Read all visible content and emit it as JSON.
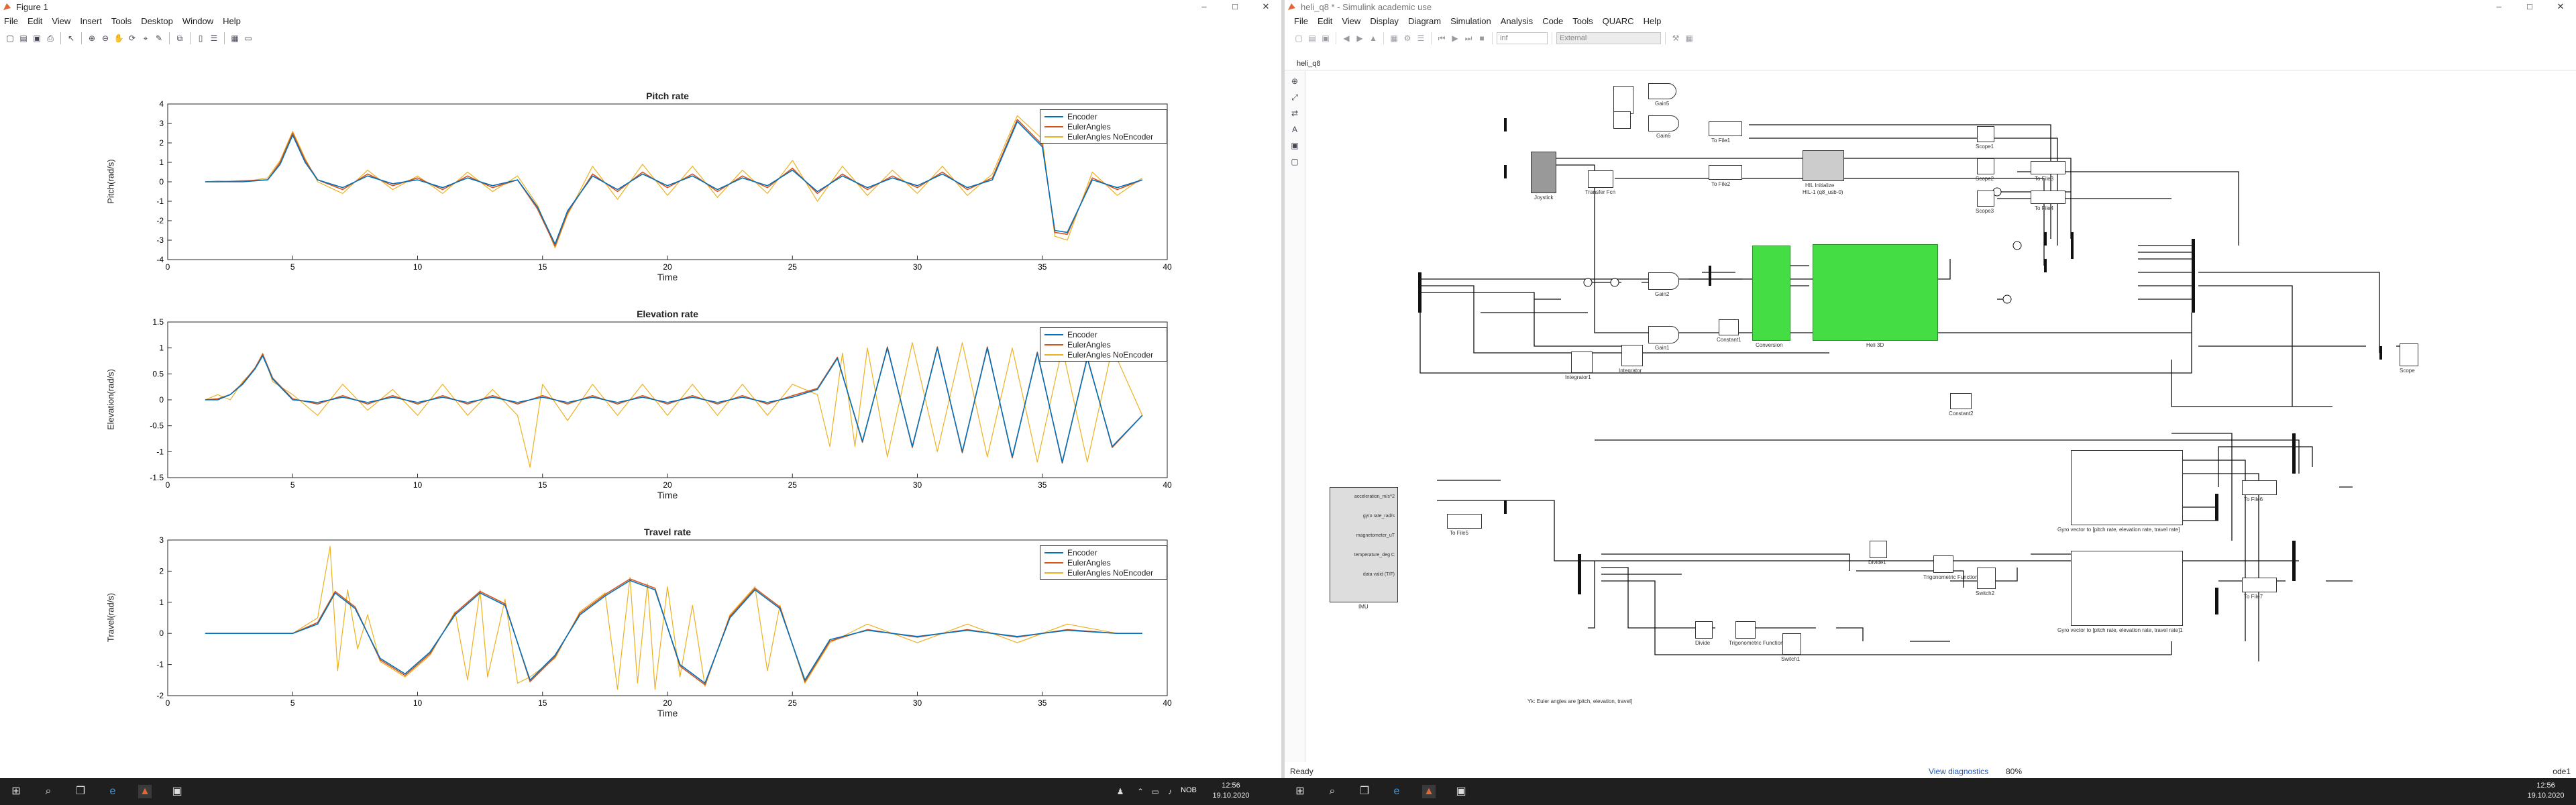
{
  "figure_window": {
    "title": "Figure 1",
    "menu": [
      "File",
      "Edit",
      "View",
      "Insert",
      "Tools",
      "Desktop",
      "Window",
      "Help"
    ],
    "controls": [
      "–",
      "□",
      "✕"
    ],
    "legend_entries": [
      "Encoder",
      "EulerAngles",
      "EulerAngles NoEncoder"
    ],
    "xlabel": "Time"
  },
  "chart_data": [
    {
      "type": "line",
      "title": "Pitch rate",
      "xlabel": "Time",
      "ylabel": "Pitch(rad/s)",
      "xlim": [
        0,
        40
      ],
      "ylim": [
        -4,
        4
      ],
      "xticks": [
        0,
        5,
        10,
        15,
        20,
        25,
        30,
        35,
        40
      ],
      "yticks": [
        -4,
        -3,
        -2,
        -1,
        0,
        1,
        2,
        3,
        4
      ],
      "legend_position": "top-right",
      "series": [
        {
          "name": "Encoder",
          "color": "#0072bd",
          "x": [
            1.5,
            2,
            3,
            4,
            4.5,
            5,
            5.5,
            6,
            7,
            8,
            9,
            10,
            11,
            12,
            13,
            14,
            14.8,
            15.5,
            16,
            17,
            18,
            19,
            20,
            21,
            22,
            23,
            24,
            25,
            26,
            27,
            28,
            29,
            30,
            31,
            32,
            33,
            34,
            35,
            35.5,
            36,
            37,
            38,
            39
          ],
          "y": [
            0,
            0,
            0,
            0.1,
            0.9,
            2.4,
            1,
            0.1,
            -0.3,
            0.3,
            -0.1,
            0.1,
            -0.3,
            0.2,
            -0.2,
            0.1,
            -1.3,
            -3.2,
            -1.5,
            0.3,
            -0.4,
            0.4,
            -0.2,
            0.3,
            -0.4,
            0.2,
            -0.2,
            0.6,
            -0.5,
            0.3,
            -0.3,
            0.2,
            -0.2,
            0.4,
            -0.3,
            0.1,
            3.1,
            1.8,
            -2.5,
            -2.6,
            0.1,
            -0.3,
            0.1
          ]
        },
        {
          "name": "EulerAngles",
          "color": "#d95319",
          "x": [
            1.5,
            2,
            3,
            4,
            4.5,
            5,
            5.5,
            6,
            7,
            8,
            9,
            10,
            11,
            12,
            13,
            14,
            14.8,
            15.5,
            16,
            17,
            18,
            19,
            20,
            21,
            22,
            23,
            24,
            25,
            26,
            27,
            28,
            29,
            30,
            31,
            32,
            33,
            34,
            35,
            35.5,
            36,
            37,
            38,
            39
          ],
          "y": [
            0,
            0,
            0.05,
            0.1,
            1,
            2.5,
            1.1,
            0.1,
            -0.4,
            0.4,
            -0.2,
            0.2,
            -0.4,
            0.3,
            -0.3,
            0.1,
            -1.4,
            -3.3,
            -1.6,
            0.4,
            -0.5,
            0.5,
            -0.3,
            0.4,
            -0.5,
            0.3,
            -0.3,
            0.7,
            -0.6,
            0.4,
            -0.4,
            0.3,
            -0.3,
            0.5,
            -0.4,
            0.2,
            3.2,
            1.9,
            -2.6,
            -2.7,
            0.2,
            -0.4,
            0.1
          ]
        },
        {
          "name": "EulerAngles NoEncoder",
          "color": "#edb120",
          "x": [
            1.5,
            2,
            3,
            4,
            4.5,
            5,
            5.5,
            6,
            7,
            8,
            9,
            10,
            11,
            12,
            13,
            14,
            14.8,
            15.5,
            16,
            17,
            18,
            19,
            20,
            21,
            22,
            23,
            24,
            25,
            26,
            27,
            28,
            29,
            30,
            31,
            32,
            33,
            34,
            35,
            35.5,
            36,
            37,
            38,
            39
          ],
          "y": [
            0,
            0.05,
            0,
            0.2,
            1.1,
            2.6,
            1.2,
            0,
            -0.6,
            0.6,
            -0.4,
            0.3,
            -0.6,
            0.5,
            -0.5,
            0.3,
            -1.2,
            -3.4,
            -1.7,
            0.8,
            -0.9,
            0.9,
            -0.7,
            0.8,
            -0.8,
            0.6,
            -0.6,
            1.1,
            -1.0,
            0.8,
            -0.7,
            0.6,
            -0.6,
            0.8,
            -0.7,
            0.4,
            3.4,
            2.2,
            -2.8,
            -3.0,
            0.5,
            -0.7,
            0.2
          ]
        }
      ]
    },
    {
      "type": "line",
      "title": "Elevation rate",
      "xlabel": "Time",
      "ylabel": "Elevation(rad/s)",
      "xlim": [
        0,
        40
      ],
      "ylim": [
        -1.5,
        1.5
      ],
      "xticks": [
        0,
        5,
        10,
        15,
        20,
        25,
        30,
        35,
        40
      ],
      "yticks": [
        -1.5,
        -1,
        -0.5,
        0,
        0.5,
        1,
        1.5
      ],
      "legend_position": "top-right",
      "series": [
        {
          "name": "Encoder",
          "color": "#0072bd",
          "x": [
            1.5,
            2,
            2.5,
            3,
            3.5,
            3.8,
            4.2,
            5,
            6,
            7,
            8,
            9,
            10,
            11,
            12,
            13,
            14,
            15,
            16,
            17,
            18,
            19,
            20,
            21,
            22,
            23,
            24,
            25,
            26,
            26.8,
            27.8,
            28.8,
            29.8,
            30.8,
            31.8,
            32.8,
            33.8,
            34.8,
            35.8,
            36.8,
            37.8,
            39
          ],
          "y": [
            0,
            0,
            0.1,
            0.3,
            0.6,
            0.85,
            0.4,
            0,
            -0.05,
            0.05,
            -0.05,
            0.05,
            -0.05,
            0.05,
            -0.05,
            0.05,
            -0.05,
            0.05,
            -0.05,
            0.05,
            -0.05,
            0.05,
            -0.05,
            0.05,
            -0.05,
            0.05,
            -0.05,
            0.05,
            0.2,
            0.8,
            -0.8,
            1.0,
            -0.9,
            1.0,
            -1.0,
            1.0,
            -1.1,
            0.9,
            -1.2,
            0.8,
            -0.9,
            -0.3
          ]
        },
        {
          "name": "EulerAngles",
          "color": "#d95319",
          "x": [
            1.5,
            2,
            2.5,
            3,
            3.5,
            3.8,
            4.2,
            5,
            6,
            7,
            8,
            9,
            10,
            11,
            12,
            13,
            14,
            15,
            16,
            17,
            18,
            19,
            20,
            21,
            22,
            23,
            24,
            25,
            26,
            26.8,
            27.8,
            28.8,
            29.8,
            30.8,
            31.8,
            32.8,
            33.8,
            34.8,
            35.8,
            36.8,
            37.8,
            39
          ],
          "y": [
            0,
            0.02,
            0.1,
            0.32,
            0.62,
            0.88,
            0.42,
            0.02,
            -0.08,
            0.08,
            -0.08,
            0.08,
            -0.08,
            0.08,
            -0.08,
            0.08,
            -0.08,
            0.08,
            -0.08,
            0.08,
            -0.08,
            0.08,
            -0.08,
            0.08,
            -0.08,
            0.08,
            -0.08,
            0.08,
            0.22,
            0.82,
            -0.82,
            1.02,
            -0.92,
            1.02,
            -1.02,
            1.02,
            -1.12,
            0.92,
            -1.22,
            0.82,
            -0.92,
            -0.3
          ]
        },
        {
          "name": "EulerAngles NoEncoder",
          "color": "#edb120",
          "x": [
            1.5,
            2,
            2.5,
            3,
            3.5,
            3.8,
            4.2,
            5,
            6,
            7,
            8,
            9,
            10,
            11,
            12,
            13,
            14,
            14.5,
            15,
            16,
            17,
            18,
            19,
            20,
            21,
            22,
            23,
            24,
            25,
            26,
            26.5,
            27,
            27.5,
            28,
            28.8,
            29.8,
            30.8,
            31.8,
            32.8,
            33.8,
            34.8,
            35.8,
            36.8,
            37.8,
            39
          ],
          "y": [
            0,
            0.1,
            0,
            0.35,
            0.6,
            0.9,
            0.35,
            0.1,
            -0.3,
            0.3,
            -0.2,
            0.2,
            -0.3,
            0.3,
            -0.3,
            0.2,
            -0.3,
            -1.3,
            0.3,
            -0.4,
            0.3,
            -0.3,
            0.3,
            -0.3,
            0.3,
            -0.3,
            0.3,
            -0.3,
            0.3,
            0.1,
            -0.9,
            0.9,
            -0.9,
            1.0,
            -1.1,
            1.1,
            -1.0,
            1.1,
            -1.1,
            1.0,
            -1.2,
            1.0,
            -1.2,
            1.0,
            -0.3
          ]
        }
      ]
    },
    {
      "type": "line",
      "title": "Travel rate",
      "xlabel": "Time",
      "ylabel": "Travel(rad/s)",
      "xlim": [
        0,
        40
      ],
      "ylim": [
        -2,
        3
      ],
      "xticks": [
        0,
        5,
        10,
        15,
        20,
        25,
        30,
        35,
        40
      ],
      "yticks": [
        -2,
        -1,
        0,
        1,
        2,
        3
      ],
      "legend_position": "top-right",
      "series": [
        {
          "name": "Encoder",
          "color": "#0072bd",
          "x": [
            1.5,
            3,
            5,
            6,
            6.7,
            7.5,
            8.5,
            9.5,
            10.5,
            11.5,
            12.5,
            13.5,
            14.5,
            15.5,
            16.5,
            17.5,
            18.5,
            19.5,
            20.5,
            21.5,
            22.5,
            23.5,
            24.5,
            25.5,
            26.5,
            28,
            30,
            32,
            34,
            36,
            38,
            39
          ],
          "y": [
            0,
            0,
            0,
            0.3,
            1.3,
            0.8,
            -0.8,
            -1.3,
            -0.6,
            0.6,
            1.3,
            0.9,
            -1.5,
            -0.7,
            0.6,
            1.2,
            1.7,
            1.4,
            -1.0,
            -1.6,
            0.5,
            1.4,
            0.8,
            -1.5,
            -0.2,
            0.1,
            -0.1,
            0.1,
            -0.1,
            0.1,
            0,
            0
          ]
        },
        {
          "name": "EulerAngles",
          "color": "#d95319",
          "x": [
            1.5,
            3,
            5,
            6,
            6.7,
            7.5,
            8.5,
            9.5,
            10.5,
            11.5,
            12.5,
            13.5,
            14.5,
            15.5,
            16.5,
            17.5,
            18.5,
            19.5,
            20.5,
            21.5,
            22.5,
            23.5,
            24.5,
            25.5,
            26.5,
            28,
            30,
            32,
            34,
            36,
            38,
            39
          ],
          "y": [
            0,
            0,
            0,
            0.35,
            1.35,
            0.85,
            -0.85,
            -1.35,
            -0.65,
            0.65,
            1.35,
            0.95,
            -1.55,
            -0.75,
            0.65,
            1.25,
            1.75,
            1.45,
            -1.05,
            -1.65,
            0.55,
            1.45,
            0.85,
            -1.55,
            -0.25,
            0.12,
            -0.12,
            0.12,
            -0.12,
            0.12,
            0,
            0
          ]
        },
        {
          "name": "EulerAngles NoEncoder",
          "color": "#edb120",
          "x": [
            1.5,
            3,
            5,
            6,
            6.5,
            6.8,
            7.2,
            7.6,
            8,
            8.5,
            9.5,
            10.5,
            11.5,
            12,
            12.5,
            12.8,
            13.5,
            14,
            14.5,
            15.5,
            16.5,
            17.5,
            18,
            18.5,
            18.8,
            19.2,
            19.5,
            20,
            20.5,
            21,
            21.5,
            22.5,
            23.5,
            24,
            24.5,
            25.5,
            26.5,
            28,
            30,
            32,
            34,
            36,
            38,
            39
          ],
          "y": [
            0,
            0,
            0,
            0.5,
            2.8,
            -1.2,
            1.4,
            -0.5,
            0.6,
            -0.9,
            -1.4,
            -0.7,
            0.7,
            -1.5,
            1.4,
            -1.4,
            1.1,
            -1.6,
            -1.4,
            -0.8,
            0.7,
            1.3,
            -1.8,
            1.8,
            -1.6,
            1.6,
            -1.8,
            1.5,
            -1.4,
            0.9,
            -1.7,
            0.6,
            1.5,
            -1.2,
            0.9,
            -1.6,
            -0.3,
            0.3,
            -0.3,
            0.3,
            -0.3,
            0.3,
            0,
            0
          ]
        }
      ]
    }
  ],
  "simulink": {
    "title": "heli_q8 * - Simulink academic use",
    "menu": [
      "File",
      "Edit",
      "View",
      "Display",
      "Diagram",
      "Simulation",
      "Analysis",
      "Code",
      "Tools",
      "QUARC",
      "Help"
    ],
    "sim_time": "inf",
    "mode": "External",
    "tab": "heli_q8",
    "status_left": "Ready",
    "status_mid": "View diagnostics",
    "status_zoom": "80%",
    "status_right": "ode1",
    "blocks": {
      "joystick": "Joystick",
      "transfer": "Transfer Fcn",
      "gain5": "Gain5",
      "gain6": "Gain6",
      "to_file1": "To File1",
      "to_file2": "To File2",
      "hil": "HIL Initialize",
      "hil_sub": "HIL-1 (q8_usb-0)",
      "gain2": "Gain2",
      "gain1": "Gain1",
      "integrator": "Integrator",
      "integrator1": "Integrator1",
      "constant1": "Constant1",
      "conversion": "Conversion",
      "heli3d": "Heli 3D",
      "constant2": "Constant2",
      "scope": "Scope",
      "scope1": "Scope1",
      "scope2": "Scope2",
      "scope3": "Scope3",
      "to_file3": "To File3",
      "to_file4": "To File4",
      "imu": "IMU",
      "imu_ports": [
        "acceleration_m/s^2",
        "gyro rate_rad/s",
        "magnetometer_uT",
        "temperature_deg C",
        "data valid (T/F)"
      ],
      "gyro_block1": "Gyro vector to [pitch rate, elevation rate, travel rate]",
      "gyro_block2": "Gyro vector to [pitch rate, elevation rate, travel rate]1",
      "to_file5": "To File5",
      "to_file6": "To File6",
      "to_file7": "To File7",
      "trig": "Trigonometric Function",
      "trig1": "Trigonometric Function1",
      "divide": "Divide",
      "divide1": "Divide1",
      "switch1": "Switch1",
      "switch2": "Switch2",
      "note": "Yk: Euler angles are [pitch, elevation, travel]"
    }
  },
  "taskbar": {
    "time": "12:56",
    "date": "19.10.2020",
    "lang": "NOB"
  }
}
